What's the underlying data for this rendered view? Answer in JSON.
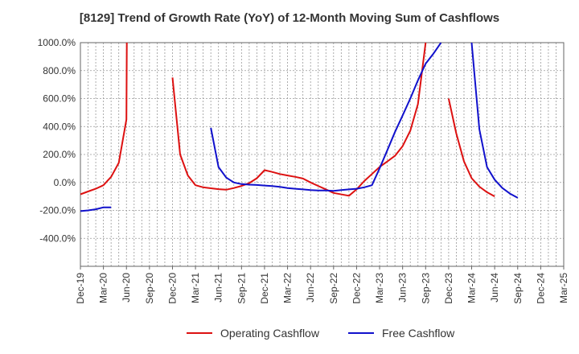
{
  "chart_data": {
    "type": "line",
    "title": "[8129]  Trend of Growth Rate (YoY) of 12-Month Moving Sum of Cashflows",
    "xlabel": "",
    "ylabel": "",
    "ylim": [
      -600,
      1000
    ],
    "grid": true,
    "legend_placement": "bottom",
    "x_tick_labels": [
      "Dec-19",
      "Mar-20",
      "Jun-20",
      "Sep-20",
      "Dec-20",
      "Mar-21",
      "Jun-21",
      "Sep-21",
      "Dec-21",
      "Mar-22",
      "Jun-22",
      "Sep-22",
      "Dec-22",
      "Mar-23",
      "Jun-23",
      "Sep-23",
      "Dec-23",
      "Mar-24",
      "Jun-24",
      "Sep-24",
      "Dec-24",
      "Mar-25"
    ],
    "y_ticks": [
      1000,
      800,
      600,
      400,
      200,
      0,
      -200,
      -400
    ],
    "y_tick_labels": [
      "1000.0%",
      "800.0%",
      "600.0%",
      "400.0%",
      "200.0%",
      "0.0%",
      "-200.0%",
      "-400.0%"
    ],
    "series": [
      {
        "name": "Operating Cashflow",
        "color": "#dd1111",
        "points": [
          [
            0,
            -85
          ],
          [
            1,
            -65
          ],
          [
            2,
            -45
          ],
          [
            3,
            -20
          ],
          [
            4,
            40
          ],
          [
            5,
            140
          ],
          [
            6,
            450
          ],
          [
            6.05,
            1000
          ],
          null,
          [
            12,
            750
          ],
          [
            13,
            200
          ],
          [
            14,
            50
          ],
          [
            15,
            -20
          ],
          [
            16,
            -35
          ],
          [
            17,
            -42
          ],
          [
            18,
            -48
          ],
          [
            19,
            -52
          ],
          [
            20,
            -40
          ],
          [
            21,
            -25
          ],
          [
            22,
            -5
          ],
          [
            23,
            30
          ],
          [
            24,
            88
          ],
          [
            25,
            75
          ],
          [
            26,
            60
          ],
          [
            27,
            50
          ],
          [
            28,
            40
          ],
          [
            29,
            28
          ],
          [
            30,
            0
          ],
          [
            31,
            -25
          ],
          [
            32,
            -50
          ],
          [
            33,
            -75
          ],
          [
            35,
            -95
          ],
          [
            36,
            -50
          ],
          [
            37,
            10
          ],
          [
            38,
            60
          ],
          [
            39,
            110
          ],
          [
            40,
            150
          ],
          [
            41,
            190
          ],
          [
            42,
            260
          ],
          [
            43,
            370
          ],
          [
            44,
            560
          ],
          [
            45,
            1000
          ],
          null,
          [
            48,
            600
          ],
          [
            49,
            350
          ],
          [
            50,
            150
          ],
          [
            51,
            30
          ],
          [
            52,
            -30
          ],
          [
            53,
            -70
          ],
          [
            54,
            -100
          ]
        ]
      },
      {
        "name": "Free Cashflow",
        "color": "#1111cc",
        "points": [
          [
            0,
            -205
          ],
          [
            1,
            -200
          ],
          [
            2,
            -192
          ],
          [
            3,
            -178
          ],
          [
            4,
            -178
          ],
          null,
          [
            17,
            390
          ],
          [
            18,
            110
          ],
          [
            19,
            35
          ],
          [
            20,
            0
          ],
          [
            21,
            -12
          ],
          [
            22,
            -16
          ],
          [
            23,
            -18
          ],
          [
            24,
            -22
          ],
          [
            25,
            -26
          ],
          [
            26,
            -32
          ],
          [
            27,
            -40
          ],
          [
            28,
            -45
          ],
          [
            29,
            -50
          ],
          [
            30,
            -55
          ],
          [
            31,
            -57
          ],
          [
            32,
            -58
          ],
          [
            33,
            -60
          ],
          [
            34,
            -55
          ],
          [
            35,
            -50
          ],
          [
            36,
            -45
          ],
          [
            37,
            -35
          ],
          [
            38,
            -20
          ],
          [
            39,
            100
          ],
          [
            40,
            230
          ],
          [
            41,
            360
          ],
          [
            42,
            480
          ],
          [
            43,
            600
          ],
          [
            44,
            730
          ],
          [
            45,
            850
          ],
          [
            46,
            920
          ],
          [
            47,
            1000
          ],
          null,
          [
            51,
            1000
          ],
          [
            52,
            380
          ],
          [
            53,
            110
          ],
          [
            54,
            20
          ],
          [
            55,
            -40
          ],
          [
            56,
            -80
          ],
          [
            57,
            -110
          ]
        ]
      }
    ]
  }
}
